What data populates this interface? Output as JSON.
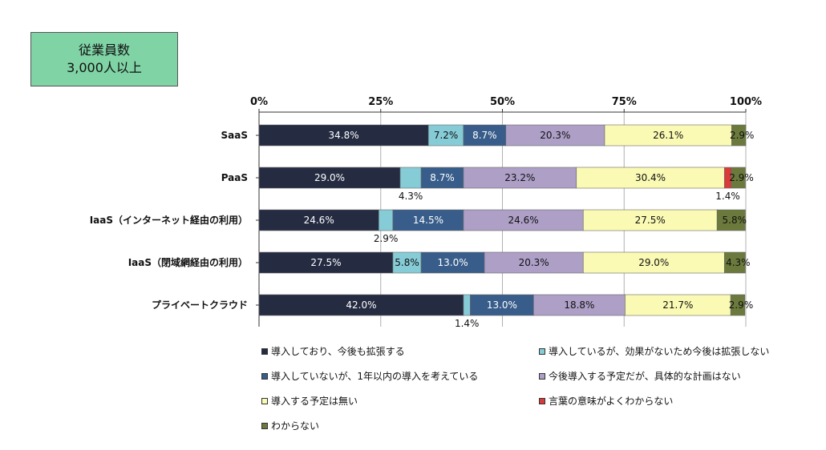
{
  "title": {
    "line1": "従業員数",
    "line2": "3,000人以上"
  },
  "chart_data": {
    "type": "bar",
    "orientation": "horizontal",
    "stacked": true,
    "xlim": [
      0,
      100
    ],
    "x_ticks": [
      "0%",
      "25%",
      "50%",
      "75%",
      "100%"
    ],
    "grid": true,
    "categories": [
      "SaaS",
      "PaaS",
      "IaaS（インターネット経由の利用）",
      "IaaS（閉域網経由の利用）",
      "プライベートクラウド"
    ],
    "series": [
      {
        "name": "導入しており、今後も拡張する",
        "color": "#252c42",
        "values": [
          34.8,
          29.0,
          24.6,
          27.5,
          42.0
        ],
        "labels": [
          "34.8%",
          "29.0%",
          "24.6%",
          "27.5%",
          "42.0%"
        ]
      },
      {
        "name": "導入しているが、効果がないため今後は拡張しない",
        "color": "#86ccd6",
        "values": [
          7.2,
          4.3,
          2.9,
          5.8,
          1.4
        ],
        "labels": [
          "7.2%",
          "4.3%",
          "2.9%",
          "5.8%",
          "1.4%"
        ]
      },
      {
        "name": "導入していないが、1年以内の導入を考えている",
        "color": "#385d8a",
        "values": [
          8.7,
          8.7,
          14.5,
          13.0,
          13.0
        ],
        "labels": [
          "8.7%",
          "8.7%",
          "14.5%",
          "13.0%",
          "13.0%"
        ]
      },
      {
        "name": "今後導入する予定だが、具体的な計画はない",
        "color": "#ad9fc6",
        "values": [
          20.3,
          23.2,
          24.6,
          20.3,
          18.8
        ],
        "labels": [
          "20.3%",
          "23.2%",
          "24.6%",
          "20.3%",
          "18.8%"
        ]
      },
      {
        "name": "導入する予定は無い",
        "color": "#fafab4",
        "values": [
          26.1,
          30.4,
          27.5,
          29.0,
          21.7
        ],
        "labels": [
          "26.1%",
          "30.4%",
          "27.5%",
          "29.0%",
          "21.7%"
        ]
      },
      {
        "name": "言葉の意味がよくわからない",
        "color": "#d93a3a",
        "values": [
          0,
          1.4,
          0,
          0,
          0
        ],
        "labels": [
          "",
          "1.4%",
          "",
          "",
          ""
        ]
      },
      {
        "name": "わからない",
        "color": "#6b7a3c",
        "values": [
          2.9,
          2.9,
          5.8,
          4.3,
          2.9
        ],
        "labels": [
          "2.9%",
          "2.9%",
          "5.8%",
          "4.3%",
          "2.9%"
        ]
      }
    ]
  }
}
